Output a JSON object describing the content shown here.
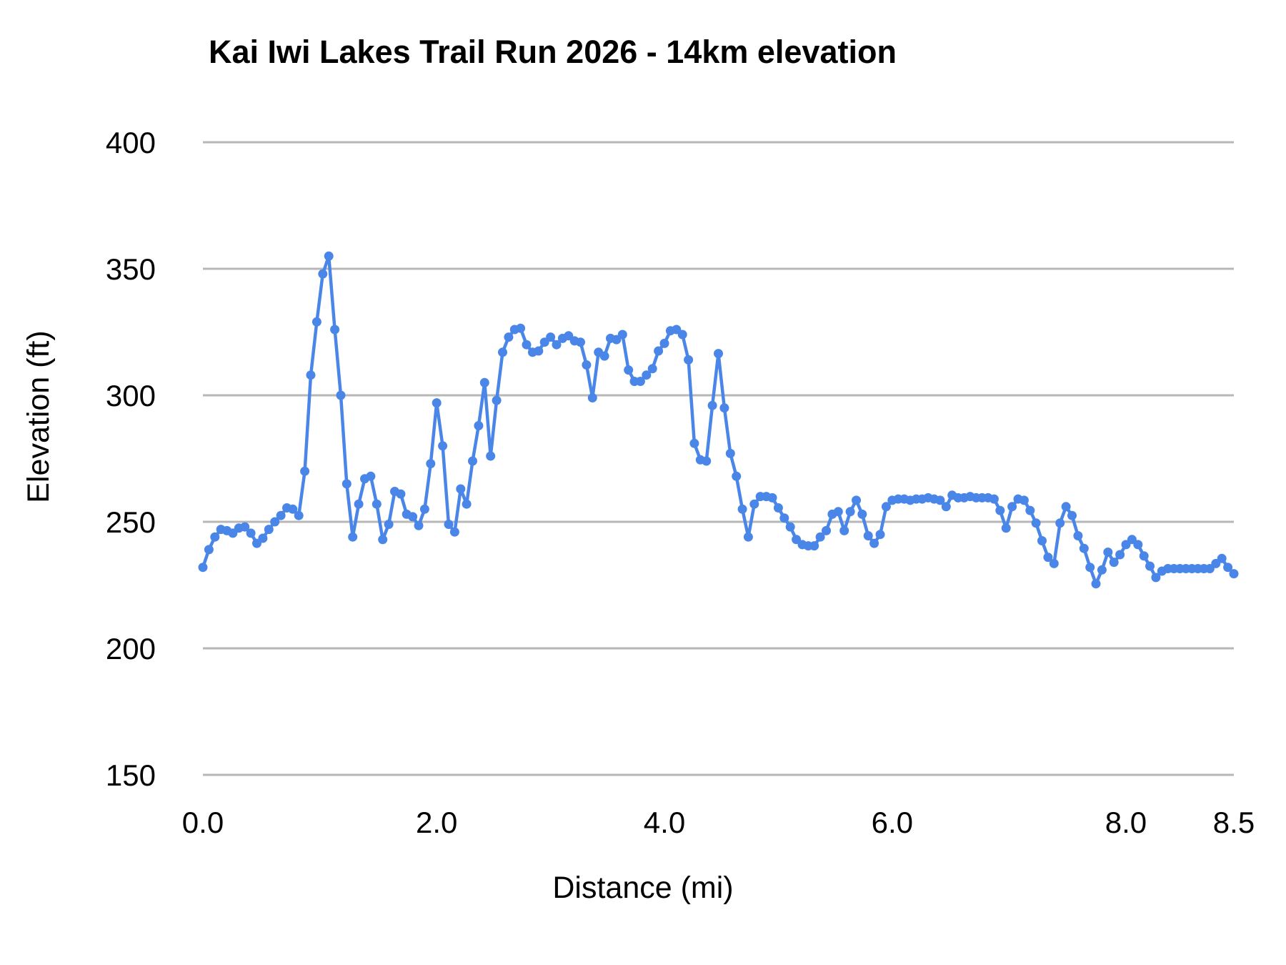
{
  "chart": {
    "title": "Kai Iwi Lakes Trail Run 2026 - 14km elevation",
    "x_axis_title": "Distance (mi)",
    "y_axis_title": "Elevation (ft)"
  },
  "colors": {
    "series": "#4a86e8",
    "gridline": "#b7b7b7",
    "text": "#000000"
  },
  "chart_data": {
    "type": "line",
    "title": "Kai Iwi Lakes Trail Run 2026 - 14km elevation",
    "xlabel": "Distance (mi)",
    "ylabel": "Elevation (ft)",
    "ylim": [
      150,
      400
    ],
    "grid": true,
    "legend": "none",
    "marker": "circle",
    "y_ticks": [
      150,
      200,
      250,
      300,
      350,
      400
    ],
    "x_ticks": {
      "values": [
        0,
        2,
        4,
        6,
        8,
        8.5
      ],
      "labels": [
        "0.0",
        "2.0",
        "4.0",
        "6.0",
        "8.0",
        "8.5"
      ]
    },
    "x": [
      0,
      0.051,
      0.103,
      0.154,
      0.205,
      0.256,
      0.308,
      0.359,
      0.41,
      0.462,
      0.513,
      0.564,
      0.615,
      0.667,
      0.718,
      0.769,
      0.821,
      0.872,
      0.923,
      0.974,
      1.026,
      1.077,
      1.128,
      1.179,
      1.231,
      1.282,
      1.333,
      1.385,
      1.436,
      1.487,
      1.538,
      1.59,
      1.641,
      1.692,
      1.744,
      1.795,
      1.846,
      1.897,
      1.949,
      2,
      2.053,
      2.105,
      2.158,
      2.211,
      2.263,
      2.316,
      2.368,
      2.421,
      2.474,
      2.526,
      2.579,
      2.632,
      2.684,
      2.737,
      2.789,
      2.842,
      2.895,
      2.947,
      3,
      3.053,
      3.105,
      3.158,
      3.211,
      3.263,
      3.316,
      3.368,
      3.421,
      3.474,
      3.526,
      3.579,
      3.632,
      3.684,
      3.737,
      3.789,
      3.842,
      3.895,
      3.947,
      4,
      4.053,
      4.105,
      4.158,
      4.211,
      4.263,
      4.316,
      4.368,
      4.421,
      4.474,
      4.526,
      4.579,
      4.632,
      4.684,
      4.737,
      4.789,
      4.842,
      4.895,
      4.947,
      5,
      5.053,
      5.105,
      5.158,
      5.211,
      5.263,
      5.316,
      5.368,
      5.421,
      5.474,
      5.526,
      5.579,
      5.632,
      5.684,
      5.737,
      5.789,
      5.842,
      5.895,
      5.947,
      6,
      6.051,
      6.103,
      6.154,
      6.205,
      6.256,
      6.308,
      6.359,
      6.41,
      6.462,
      6.513,
      6.564,
      6.615,
      6.667,
      6.718,
      6.769,
      6.821,
      6.872,
      6.923,
      6.974,
      7.026,
      7.077,
      7.128,
      7.179,
      7.231,
      7.282,
      7.333,
      7.385,
      7.436,
      7.487,
      7.538,
      7.59,
      7.641,
      7.692,
      7.744,
      7.795,
      7.846,
      7.897,
      7.949,
      8,
      8.028,
      8.056,
      8.083,
      8.111,
      8.139,
      8.167,
      8.194,
      8.222,
      8.25,
      8.278,
      8.306,
      8.333,
      8.361,
      8.389,
      8.417,
      8.444,
      8.472,
      8.5
    ],
    "elevation": [
      232,
      239,
      244,
      247,
      246.5,
      245.5,
      247.5,
      248,
      245.5,
      241.5,
      243.5,
      247,
      250,
      252.5,
      255.5,
      255,
      252.5,
      270,
      308,
      329,
      348,
      355,
      326,
      300,
      265,
      244,
      257,
      267,
      268,
      257,
      243,
      249,
      262,
      261,
      253,
      252,
      248.5,
      255,
      273,
      297,
      280,
      249,
      246,
      263,
      257,
      274,
      288,
      305,
      276,
      298,
      317,
      323,
      326,
      326.5,
      320,
      317,
      317.5,
      321,
      323,
      320,
      322.5,
      323.5,
      321.5,
      321,
      312,
      299,
      317,
      315.5,
      322.5,
      322,
      324,
      310,
      305.5,
      305.5,
      308,
      310.5,
      317.5,
      320.5,
      325.5,
      326,
      324,
      314,
      281,
      274.5,
      274,
      296,
      316.5,
      295,
      277,
      268,
      255,
      244,
      257,
      260,
      260,
      259.5,
      255.5,
      251.5,
      248,
      243,
      241,
      240.5,
      240.5,
      244,
      246.5,
      253,
      254,
      246.5,
      254,
      258.5,
      253,
      244.5,
      241.5,
      245,
      256,
      258.5,
      259,
      259,
      258.5,
      259,
      259,
      259.5,
      259,
      258.5,
      256,
      260.5,
      259.5,
      259.5,
      260,
      259.5,
      259.5,
      259.5,
      259,
      254.5,
      247.5,
      256,
      259,
      258.5,
      254.5,
      249.5,
      242.5,
      236,
      233.5,
      249.5,
      256,
      252.5,
      244.5,
      239.5,
      232,
      225.5,
      231,
      238,
      234,
      237,
      241,
      243,
      241,
      236.5,
      232.5,
      228,
      230.5,
      231.5,
      231.5,
      231.5,
      231.5,
      231.5,
      231.5,
      231.5,
      231.5,
      233.5,
      235.5,
      232,
      229.5
    ]
  }
}
